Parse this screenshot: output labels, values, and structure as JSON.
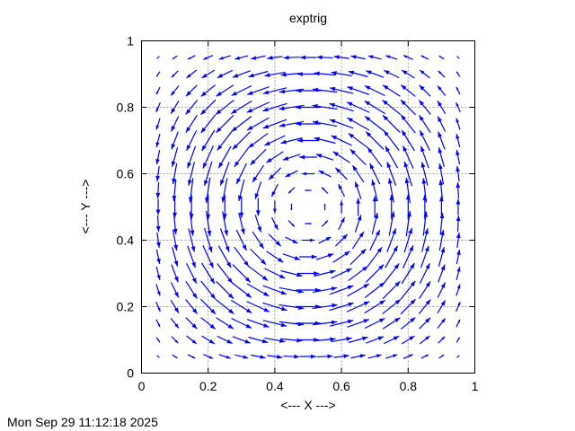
{
  "chart_data": {
    "type": "vector",
    "title": "exptrig",
    "xlabel": "<--- X --->",
    "ylabel": "<--- Y --->",
    "xlim": [
      0,
      1
    ],
    "ylim": [
      0,
      1
    ],
    "x_ticks": [
      "0",
      "0.2",
      "0.4",
      "0.6",
      "0.8",
      "1"
    ],
    "y_ticks": [
      "0",
      "0.2",
      "0.4",
      "0.6",
      "0.8",
      "1"
    ],
    "grid": true,
    "arrow_color": "#0000ff",
    "x": [
      0.05,
      0.1,
      0.15,
      0.2,
      0.25,
      0.3,
      0.35,
      0.4,
      0.45,
      0.5,
      0.55,
      0.6,
      0.65,
      0.7,
      0.75,
      0.8,
      0.85,
      0.9,
      0.95
    ],
    "y": [
      0.05,
      0.1,
      0.15,
      0.2,
      0.25,
      0.3,
      0.35,
      0.4,
      0.45,
      0.5,
      0.55,
      0.6,
      0.65,
      0.7,
      0.75,
      0.8,
      0.85,
      0.9,
      0.95
    ],
    "u": [
      [
        0.06,
        0.12,
        0.18,
        0.23,
        0.28,
        0.32,
        0.35,
        0.37,
        0.39,
        0.39,
        0.39,
        0.37,
        0.35,
        0.32,
        0.28,
        0.23,
        0.18,
        0.12,
        0.06
      ],
      [
        0.08,
        0.16,
        0.24,
        0.31,
        0.37,
        0.43,
        0.47,
        0.5,
        0.52,
        0.53,
        0.52,
        0.5,
        0.47,
        0.43,
        0.37,
        0.31,
        0.24,
        0.16,
        0.08
      ],
      [
        0.09,
        0.19,
        0.27,
        0.35,
        0.42,
        0.49,
        0.53,
        0.57,
        0.59,
        0.6,
        0.59,
        0.57,
        0.53,
        0.49,
        0.42,
        0.35,
        0.27,
        0.19,
        0.09
      ],
      [
        0.1,
        0.19,
        0.28,
        0.36,
        0.44,
        0.5,
        0.55,
        0.59,
        0.61,
        0.62,
        0.61,
        0.59,
        0.55,
        0.5,
        0.44,
        0.36,
        0.28,
        0.19,
        0.1
      ],
      [
        0.09,
        0.18,
        0.27,
        0.35,
        0.42,
        0.48,
        0.53,
        0.57,
        0.59,
        0.6,
        0.59,
        0.57,
        0.53,
        0.48,
        0.42,
        0.35,
        0.27,
        0.18,
        0.09
      ],
      [
        0.08,
        0.16,
        0.24,
        0.31,
        0.37,
        0.43,
        0.47,
        0.5,
        0.52,
        0.53,
        0.52,
        0.5,
        0.47,
        0.43,
        0.37,
        0.31,
        0.24,
        0.16,
        0.08
      ],
      [
        0.07,
        0.13,
        0.19,
        0.25,
        0.3,
        0.35,
        0.38,
        0.41,
        0.42,
        0.43,
        0.42,
        0.41,
        0.38,
        0.35,
        0.3,
        0.25,
        0.19,
        0.13,
        0.07
      ],
      [
        0.05,
        0.09,
        0.14,
        0.18,
        0.21,
        0.24,
        0.27,
        0.29,
        0.3,
        0.3,
        0.3,
        0.29,
        0.27,
        0.24,
        0.21,
        0.18,
        0.14,
        0.09,
        0.05
      ],
      [
        0.02,
        0.05,
        0.07,
        0.09,
        0.11,
        0.13,
        0.14,
        0.15,
        0.15,
        0.16,
        0.15,
        0.15,
        0.14,
        0.13,
        0.11,
        0.09,
        0.07,
        0.05,
        0.02
      ],
      [
        0,
        0,
        0,
        0,
        0,
        0,
        0,
        0,
        0,
        0,
        0,
        0,
        0,
        0,
        0,
        0,
        0,
        0,
        0
      ],
      [
        -0.02,
        -0.05,
        -0.07,
        -0.09,
        -0.11,
        -0.13,
        -0.14,
        -0.15,
        -0.15,
        -0.16,
        -0.15,
        -0.15,
        -0.14,
        -0.13,
        -0.11,
        -0.09,
        -0.07,
        -0.05,
        -0.02
      ],
      [
        -0.05,
        -0.09,
        -0.14,
        -0.18,
        -0.21,
        -0.24,
        -0.27,
        -0.29,
        -0.3,
        -0.3,
        -0.3,
        -0.29,
        -0.27,
        -0.24,
        -0.21,
        -0.18,
        -0.14,
        -0.09,
        -0.05
      ],
      [
        -0.07,
        -0.13,
        -0.19,
        -0.25,
        -0.3,
        -0.35,
        -0.38,
        -0.41,
        -0.42,
        -0.43,
        -0.42,
        -0.41,
        -0.38,
        -0.35,
        -0.3,
        -0.25,
        -0.19,
        -0.13,
        -0.07
      ],
      [
        -0.08,
        -0.16,
        -0.24,
        -0.31,
        -0.37,
        -0.43,
        -0.47,
        -0.5,
        -0.52,
        -0.53,
        -0.52,
        -0.5,
        -0.47,
        -0.43,
        -0.37,
        -0.31,
        -0.24,
        -0.16,
        -0.08
      ],
      [
        -0.09,
        -0.18,
        -0.27,
        -0.35,
        -0.42,
        -0.48,
        -0.53,
        -0.57,
        -0.59,
        -0.6,
        -0.59,
        -0.57,
        -0.53,
        -0.48,
        -0.42,
        -0.35,
        -0.27,
        -0.18,
        -0.09
      ],
      [
        -0.1,
        -0.19,
        -0.28,
        -0.36,
        -0.44,
        -0.5,
        -0.55,
        -0.59,
        -0.61,
        -0.62,
        -0.61,
        -0.59,
        -0.55,
        -0.5,
        -0.44,
        -0.36,
        -0.28,
        -0.19,
        -0.1
      ],
      [
        -0.09,
        -0.19,
        -0.27,
        -0.35,
        -0.42,
        -0.49,
        -0.53,
        -0.57,
        -0.59,
        -0.6,
        -0.59,
        -0.57,
        -0.53,
        -0.49,
        -0.42,
        -0.35,
        -0.27,
        -0.19,
        -0.09
      ],
      [
        -0.08,
        -0.16,
        -0.24,
        -0.31,
        -0.37,
        -0.43,
        -0.47,
        -0.5,
        -0.52,
        -0.53,
        -0.52,
        -0.5,
        -0.47,
        -0.43,
        -0.37,
        -0.31,
        -0.24,
        -0.16,
        -0.08
      ],
      [
        -0.06,
        -0.12,
        -0.18,
        -0.23,
        -0.28,
        -0.32,
        -0.35,
        -0.37,
        -0.39,
        -0.39,
        -0.39,
        -0.37,
        -0.35,
        -0.32,
        -0.28,
        -0.23,
        -0.18,
        -0.12,
        -0.06
      ]
    ],
    "v": [
      [
        -0.06,
        -0.08,
        -0.09,
        -0.1,
        -0.09,
        -0.08,
        -0.07,
        -0.05,
        -0.02,
        0,
        0.02,
        0.05,
        0.07,
        0.08,
        0.09,
        0.1,
        0.09,
        0.08,
        0.06
      ],
      [
        -0.12,
        -0.16,
        -0.19,
        -0.19,
        -0.18,
        -0.16,
        -0.13,
        -0.09,
        -0.05,
        0,
        0.05,
        0.09,
        0.13,
        0.16,
        0.18,
        0.19,
        0.19,
        0.16,
        0.12
      ],
      [
        -0.18,
        -0.24,
        -0.27,
        -0.28,
        -0.27,
        -0.24,
        -0.19,
        -0.14,
        -0.07,
        0,
        0.07,
        0.14,
        0.19,
        0.24,
        0.27,
        0.28,
        0.27,
        0.24,
        0.18
      ],
      [
        -0.23,
        -0.31,
        -0.35,
        -0.36,
        -0.35,
        -0.31,
        -0.25,
        -0.18,
        -0.09,
        0,
        0.09,
        0.18,
        0.25,
        0.31,
        0.35,
        0.36,
        0.35,
        0.31,
        0.23
      ],
      [
        -0.28,
        -0.37,
        -0.42,
        -0.44,
        -0.42,
        -0.37,
        -0.3,
        -0.21,
        -0.11,
        0,
        0.11,
        0.21,
        0.3,
        0.37,
        0.42,
        0.44,
        0.42,
        0.37,
        0.28
      ],
      [
        -0.32,
        -0.43,
        -0.49,
        -0.5,
        -0.48,
        -0.43,
        -0.35,
        -0.24,
        -0.13,
        0,
        0.13,
        0.24,
        0.35,
        0.43,
        0.48,
        0.5,
        0.49,
        0.43,
        0.32
      ],
      [
        -0.35,
        -0.47,
        -0.53,
        -0.55,
        -0.53,
        -0.47,
        -0.38,
        -0.27,
        -0.14,
        0,
        0.14,
        0.27,
        0.38,
        0.47,
        0.53,
        0.55,
        0.53,
        0.47,
        0.35
      ],
      [
        -0.37,
        -0.5,
        -0.57,
        -0.59,
        -0.57,
        -0.5,
        -0.41,
        -0.29,
        -0.15,
        0,
        0.15,
        0.29,
        0.41,
        0.5,
        0.57,
        0.59,
        0.57,
        0.5,
        0.37
      ],
      [
        -0.39,
        -0.52,
        -0.59,
        -0.61,
        -0.59,
        -0.52,
        -0.42,
        -0.3,
        -0.15,
        0,
        0.15,
        0.3,
        0.42,
        0.52,
        0.59,
        0.61,
        0.59,
        0.52,
        0.39
      ],
      [
        -0.39,
        -0.53,
        -0.6,
        -0.62,
        -0.6,
        -0.53,
        -0.43,
        -0.3,
        -0.16,
        0,
        0.16,
        0.3,
        0.43,
        0.53,
        0.6,
        0.62,
        0.6,
        0.53,
        0.39
      ],
      [
        -0.39,
        -0.52,
        -0.59,
        -0.61,
        -0.59,
        -0.52,
        -0.42,
        -0.3,
        -0.15,
        0,
        0.15,
        0.3,
        0.42,
        0.52,
        0.59,
        0.61,
        0.59,
        0.52,
        0.39
      ],
      [
        -0.37,
        -0.5,
        -0.57,
        -0.59,
        -0.57,
        -0.5,
        -0.41,
        -0.29,
        -0.15,
        0,
        0.15,
        0.29,
        0.41,
        0.5,
        0.57,
        0.59,
        0.57,
        0.5,
        0.37
      ],
      [
        -0.35,
        -0.47,
        -0.53,
        -0.55,
        -0.53,
        -0.47,
        -0.38,
        -0.27,
        -0.14,
        0,
        0.14,
        0.27,
        0.38,
        0.47,
        0.53,
        0.55,
        0.53,
        0.47,
        0.35
      ],
      [
        -0.32,
        -0.43,
        -0.49,
        -0.5,
        -0.48,
        -0.43,
        -0.35,
        -0.24,
        -0.13,
        0,
        0.13,
        0.24,
        0.35,
        0.43,
        0.48,
        0.5,
        0.49,
        0.43,
        0.32
      ],
      [
        -0.28,
        -0.37,
        -0.42,
        -0.44,
        -0.42,
        -0.37,
        -0.3,
        -0.21,
        -0.11,
        0,
        0.11,
        0.21,
        0.3,
        0.37,
        0.42,
        0.44,
        0.42,
        0.37,
        0.28
      ],
      [
        -0.23,
        -0.31,
        -0.35,
        -0.36,
        -0.35,
        -0.31,
        -0.25,
        -0.18,
        -0.09,
        0,
        0.09,
        0.18,
        0.25,
        0.31,
        0.35,
        0.36,
        0.35,
        0.31,
        0.23
      ],
      [
        -0.18,
        -0.24,
        -0.27,
        -0.28,
        -0.27,
        -0.24,
        -0.19,
        -0.14,
        -0.07,
        0,
        0.07,
        0.14,
        0.19,
        0.24,
        0.27,
        0.28,
        0.27,
        0.24,
        0.18
      ],
      [
        -0.12,
        -0.16,
        -0.19,
        -0.19,
        -0.18,
        -0.16,
        -0.13,
        -0.09,
        -0.05,
        0,
        0.05,
        0.09,
        0.13,
        0.16,
        0.18,
        0.19,
        0.19,
        0.16,
        0.12
      ],
      [
        -0.06,
        -0.08,
        -0.09,
        -0.1,
        -0.09,
        -0.08,
        -0.07,
        -0.05,
        -0.02,
        0,
        0.02,
        0.05,
        0.07,
        0.08,
        0.09,
        0.1,
        0.09,
        0.08,
        0.06
      ]
    ]
  },
  "timestamp": "Mon Sep 29 11:12:18 2025"
}
